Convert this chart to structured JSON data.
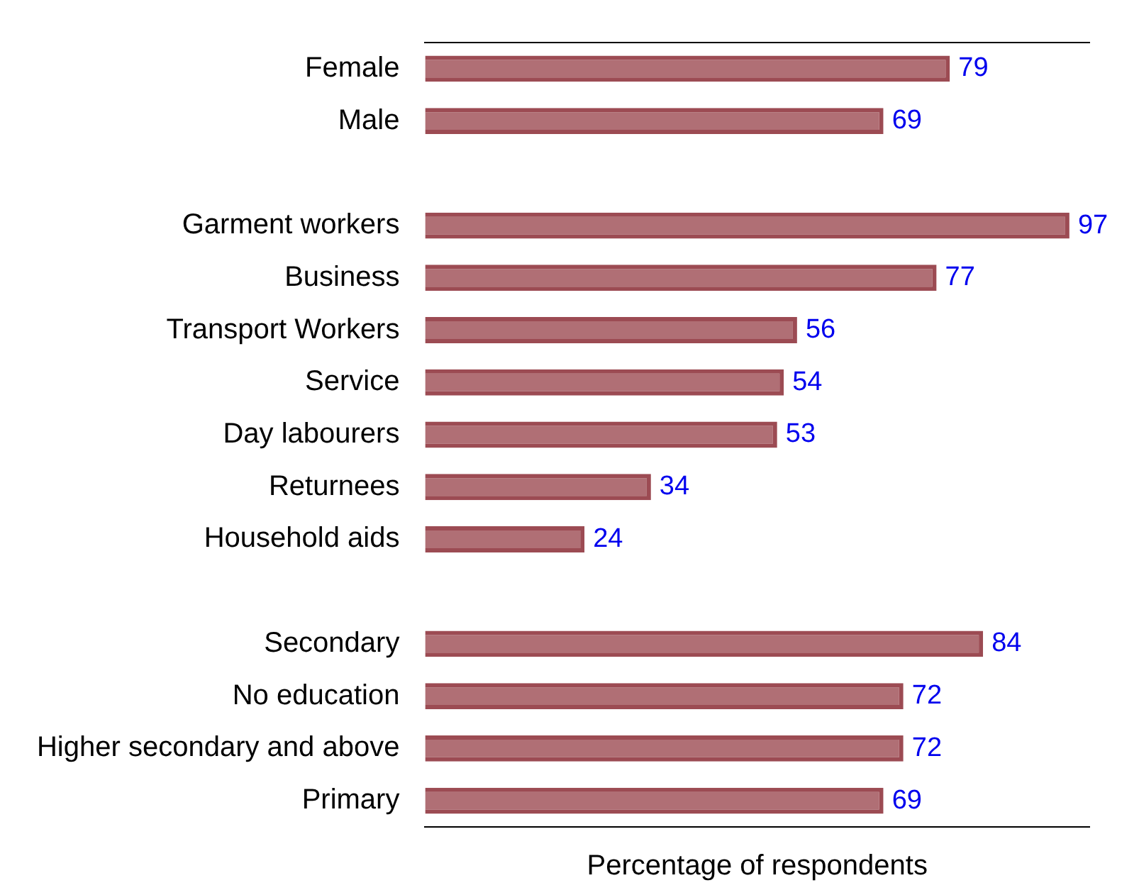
{
  "chart_data": {
    "type": "bar",
    "orientation": "horizontal",
    "xlabel": "Percentage of respondents",
    "categories": [
      "Female",
      "Male",
      null,
      "Garment workers",
      "Business",
      "Transport Workers",
      "Service",
      "Day labourers",
      "Returnees",
      "Household aids",
      null,
      "Secondary",
      "No education",
      "Higher secondary and above",
      "Primary"
    ],
    "values": [
      79,
      69,
      null,
      97,
      77,
      56,
      54,
      53,
      34,
      24,
      null,
      84,
      72,
      72,
      69
    ],
    "color": "#9c4b53",
    "xlim": [
      0,
      100
    ],
    "data_labels": true,
    "tick_labels": "y",
    "grid": false,
    "legend": false
  }
}
